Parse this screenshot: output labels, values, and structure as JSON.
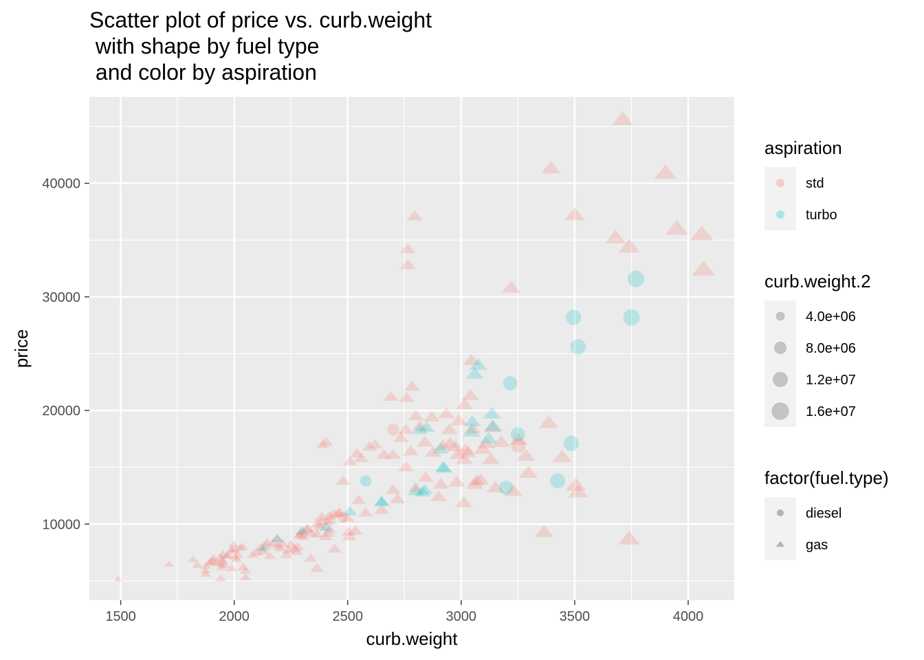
{
  "chart_data": {
    "type": "scatter",
    "title": [
      "Scatter plot of price vs. curb.weight",
      " with shape by fuel type",
      " and color by aspiration"
    ],
    "xlabel": "curb.weight",
    "ylabel": "price",
    "xlim": [
      1362,
      4203
    ],
    "ylim": [
      3300,
      47600
    ],
    "x_ticks": [
      1500,
      2000,
      2500,
      3000,
      3500,
      4000
    ],
    "y_ticks": [
      10000,
      20000,
      30000,
      40000
    ],
    "grid": true,
    "colors": {
      "std": "#F8766D",
      "turbo": "#00BFC4",
      "panel": "#EBEBEB",
      "grid": "#FFFFFF",
      "legend_key": "#F2F2F2",
      "size_key": "#7F7F7F"
    },
    "legends": {
      "aspiration": {
        "title": "aspiration",
        "entries": [
          "std",
          "turbo"
        ]
      },
      "size": {
        "title": "curb.weight.2",
        "labels": [
          "4.0e+06",
          "8.0e+06",
          "1.2e+07",
          "1.6e+07"
        ],
        "values": [
          4000000,
          8000000,
          12000000,
          16000000
        ]
      },
      "fuel": {
        "title": "factor(fuel.type)",
        "entries": [
          "diesel",
          "gas"
        ],
        "shapes": [
          "circle",
          "triangle"
        ]
      }
    },
    "series": [
      {
        "aspiration": "std",
        "fuel_type": "gas",
        "shape": "triangle",
        "points": [
          [
            1488,
            5150
          ],
          [
            1713,
            6480
          ],
          [
            1819,
            6900
          ],
          [
            1837,
            6400
          ],
          [
            1874,
            5900
          ],
          [
            1876,
            6300
          ],
          [
            1890,
            6580
          ],
          [
            1900,
            6650
          ],
          [
            1905,
            6800
          ],
          [
            1909,
            7000
          ],
          [
            1918,
            6600
          ],
          [
            1938,
            6500
          ],
          [
            1940,
            7100
          ],
          [
            1944,
            6200
          ],
          [
            1945,
            6870
          ],
          [
            1950,
            6700
          ],
          [
            1951,
            7350
          ],
          [
            1956,
            6400
          ],
          [
            1967,
            7200
          ],
          [
            1971,
            7250
          ],
          [
            1989,
            7600
          ],
          [
            1989,
            6100
          ],
          [
            1990,
            7800
          ],
          [
            2004,
            7750
          ],
          [
            2010,
            6900
          ],
          [
            2015,
            7300
          ],
          [
            2028,
            7900
          ],
          [
            2037,
            8000
          ],
          [
            2040,
            6200
          ],
          [
            2050,
            5900
          ],
          [
            2081,
            7300
          ],
          [
            2100,
            7500
          ],
          [
            2115,
            7900
          ],
          [
            2128,
            7600
          ],
          [
            2140,
            8100
          ],
          [
            2145,
            8400
          ],
          [
            2190,
            8700
          ],
          [
            2191,
            8100
          ],
          [
            2204,
            7900
          ],
          [
            2212,
            8300
          ],
          [
            2240,
            7700
          ],
          [
            2250,
            8200
          ],
          [
            2265,
            7850
          ],
          [
            2275,
            7600
          ],
          [
            2280,
            8000
          ],
          [
            2289,
            9000
          ],
          [
            2300,
            9300
          ],
          [
            2304,
            8900
          ],
          [
            2319,
            9500
          ],
          [
            2324,
            9600
          ],
          [
            2337,
            7000
          ],
          [
            2340,
            9200
          ],
          [
            2365,
            9100
          ],
          [
            2365,
            6100
          ],
          [
            2380,
            9800
          ],
          [
            2385,
            10600
          ],
          [
            2403,
            8900
          ],
          [
            2410,
            10200
          ],
          [
            2414,
            9200
          ],
          [
            2420,
            9500
          ],
          [
            2425,
            10300
          ],
          [
            2443,
            7800
          ],
          [
            2458,
            10900
          ],
          [
            2480,
            13800
          ],
          [
            2500,
            10500
          ],
          [
            2507,
            8900
          ],
          [
            2535,
            9400
          ],
          [
            2540,
            16200
          ],
          [
            2548,
            12100
          ],
          [
            2579,
            11000
          ],
          [
            2650,
            11250
          ],
          [
            2660,
            16100
          ],
          [
            2700,
            13000
          ],
          [
            2720,
            12200
          ],
          [
            2734,
            17600
          ],
          [
            2756,
            18300
          ],
          [
            2778,
            16400
          ],
          [
            2800,
            13200
          ],
          [
            2818,
            18600
          ],
          [
            2844,
            14100
          ],
          [
            2876,
            16300
          ],
          [
            2900,
            12400
          ],
          [
            2910,
            13500
          ],
          [
            2920,
            16900
          ],
          [
            2935,
            19700
          ],
          [
            2952,
            17100
          ],
          [
            2975,
            16800
          ],
          [
            2985,
            16100
          ],
          [
            3012,
            11900
          ],
          [
            3015,
            15700
          ],
          [
            3020,
            16500
          ],
          [
            3040,
            21300
          ],
          [
            3060,
            13500
          ],
          [
            3085,
            13900
          ],
          [
            3095,
            16600
          ],
          [
            3110,
            17100
          ],
          [
            3130,
            15700
          ],
          [
            3139,
            18500
          ],
          [
            3151,
            13200
          ],
          [
            3176,
            17200
          ],
          [
            3230,
            12900
          ],
          [
            3252,
            17400
          ],
          [
            3285,
            16000
          ],
          [
            3296,
            14500
          ],
          [
            3365,
            9300
          ],
          [
            3385,
            18900
          ],
          [
            3445,
            15900
          ],
          [
            3505,
            13400
          ],
          [
            3515,
            12800
          ],
          [
            3740,
            8700
          ],
          [
            2365,
            10000
          ],
          [
            2385,
            10200
          ],
          [
            2420,
            10700
          ],
          [
            2440,
            10900
          ],
          [
            2465,
            11000
          ],
          [
            2505,
            9300
          ],
          [
            2290,
            9100
          ],
          [
            2170,
            8300
          ],
          [
            2005,
            7100
          ],
          [
            1998,
            8200
          ],
          [
            1875,
            5600
          ],
          [
            1940,
            5200
          ],
          [
            2050,
            5300
          ],
          [
            2156,
            7200
          ],
          [
            2230,
            7300
          ],
          [
            2390,
            17000
          ],
          [
            2405,
            17200
          ],
          [
            2510,
            15500
          ],
          [
            2560,
            15800
          ],
          [
            2700,
            16100
          ],
          [
            2757,
            15000
          ],
          [
            2800,
            19500
          ],
          [
            2840,
            17200
          ],
          [
            2870,
            19400
          ],
          [
            2948,
            18300
          ],
          [
            2980,
            13700
          ],
          [
            3030,
            16300
          ],
          [
            3045,
            24400
          ],
          [
            3050,
            18400
          ],
          [
            3068,
            13800
          ],
          [
            2595,
            16800
          ],
          [
            2620,
            17000
          ],
          [
            2690,
            21200
          ],
          [
            2760,
            21100
          ],
          [
            2785,
            22100
          ],
          [
            2990,
            19100
          ],
          [
            3015,
            20500
          ],
          [
            3220,
            30800
          ],
          [
            3395,
            41300
          ],
          [
            3500,
            37200
          ],
          [
            3680,
            35200
          ],
          [
            3712,
            45600
          ],
          [
            3740,
            34400
          ],
          [
            3900,
            40900
          ],
          [
            3950,
            36000
          ],
          [
            4060,
            35500
          ],
          [
            4068,
            32400
          ],
          [
            2765,
            34200
          ],
          [
            2765,
            32800
          ],
          [
            2795,
            37100
          ]
        ]
      },
      {
        "aspiration": "std",
        "fuel_type": "diesel",
        "shape": "circle",
        "points": [
          [
            2700,
            18300
          ],
          [
            3252,
            16900
          ],
          [
            2480,
            10600
          ]
        ]
      },
      {
        "aspiration": "turbo",
        "fuel_type": "gas",
        "shape": "triangle",
        "points": [
          [
            2128,
            7900
          ],
          [
            2190,
            8700
          ],
          [
            2300,
            9400
          ],
          [
            2405,
            9700
          ],
          [
            2510,
            11100
          ],
          [
            2650,
            11900
          ],
          [
            2818,
            18300
          ],
          [
            2830,
            12800
          ],
          [
            2840,
            13000
          ],
          [
            2848,
            18500
          ],
          [
            2910,
            16600
          ],
          [
            2921,
            15000
          ],
          [
            2925,
            14900
          ],
          [
            3045,
            18100
          ],
          [
            3049,
            19000
          ],
          [
            3060,
            23200
          ],
          [
            3075,
            24000
          ],
          [
            3120,
            17500
          ],
          [
            3135,
            19700
          ],
          [
            3140,
            18600
          ],
          [
            2650,
            12000
          ],
          [
            2800,
            12900
          ]
        ]
      },
      {
        "aspiration": "turbo",
        "fuel_type": "diesel",
        "shape": "circle",
        "points": [
          [
            2580,
            13800
          ],
          [
            3197,
            13200
          ],
          [
            3216,
            22400
          ],
          [
            3250,
            17900
          ],
          [
            3425,
            13800
          ],
          [
            3485,
            17100
          ],
          [
            3495,
            28200
          ],
          [
            3515,
            25600
          ],
          [
            3750,
            28200
          ],
          [
            3770,
            31600
          ]
        ]
      }
    ]
  }
}
